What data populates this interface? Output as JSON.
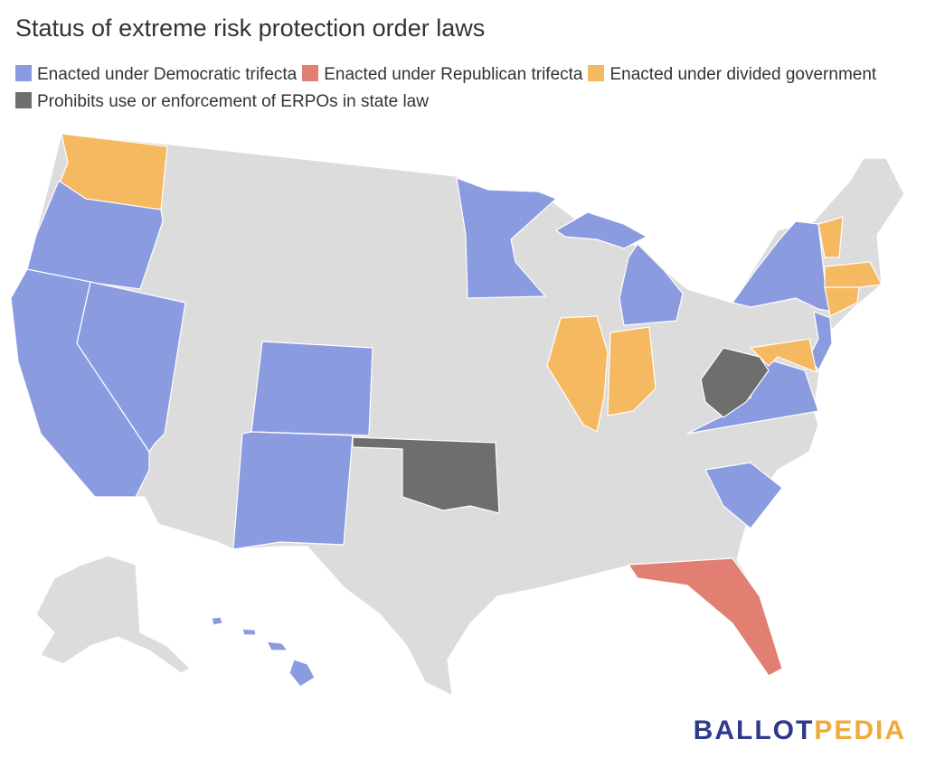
{
  "title": "Status of extreme risk protection order laws",
  "legend": {
    "items": [
      {
        "label": "Enacted under Democratic trifecta",
        "color": "#8a9be0"
      },
      {
        "label": "Enacted under Republican trifecta",
        "color": "#e17f73"
      },
      {
        "label": "Enacted under divided government",
        "color": "#f5b961"
      },
      {
        "label": "Prohibits use or enforcement of ERPOs in state law",
        "color": "#6e6e6e"
      }
    ]
  },
  "logo": {
    "first": "BALLOT",
    "second": "PEDIA"
  }
}
